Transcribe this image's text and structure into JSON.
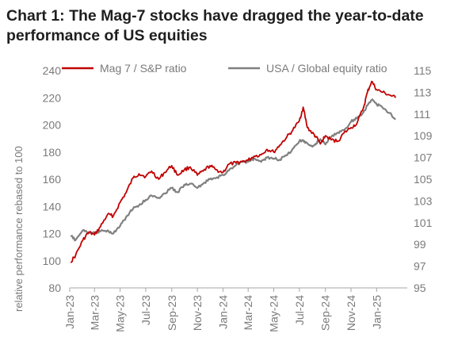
{
  "title": "Chart 1: The Mag-7 stocks have dragged the year-to-date performance of US equities",
  "chart_data": {
    "type": "line",
    "title": "Chart 1: The Mag-7 stocks have dragged the year-to-date performance of US equities",
    "ylabel": "relative performance rebased to 100",
    "ylim": [
      80,
      240
    ],
    "y_ticks": [
      80,
      100,
      120,
      140,
      160,
      180,
      200,
      220,
      240
    ],
    "y2lim": [
      95,
      115
    ],
    "y2_ticks": [
      95,
      97,
      99,
      101,
      103,
      105,
      107,
      109,
      111,
      113,
      115
    ],
    "x_ticks": [
      "Jan-23",
      "Mar-23",
      "May-23",
      "Jul-23",
      "Sep-23",
      "Nov-23",
      "Jan-24",
      "Mar-24",
      "May-24",
      "Jul-24",
      "Sep-24",
      "Nov-24",
      "Jan-25"
    ],
    "xlim": [
      "2023-01",
      "2025-03"
    ],
    "legend_position": "top",
    "grid": false,
    "series": [
      {
        "name": "Mag 7 / S&P ratio",
        "axis": "left",
        "color": "#c00000",
        "x": [
          "2023-01-03",
          "2023-01-15",
          "2023-02-01",
          "2023-02-15",
          "2023-03-01",
          "2023-03-15",
          "2023-04-01",
          "2023-04-15",
          "2023-05-01",
          "2023-05-15",
          "2023-06-01",
          "2023-06-15",
          "2023-07-01",
          "2023-07-15",
          "2023-08-01",
          "2023-08-15",
          "2023-09-01",
          "2023-09-15",
          "2023-10-01",
          "2023-10-15",
          "2023-11-01",
          "2023-11-15",
          "2023-12-01",
          "2023-12-15",
          "2024-01-01",
          "2024-01-15",
          "2024-02-01",
          "2024-02-15",
          "2024-03-01",
          "2024-03-15",
          "2024-04-01",
          "2024-04-15",
          "2024-05-01",
          "2024-05-15",
          "2024-06-01",
          "2024-06-15",
          "2024-07-01",
          "2024-07-10",
          "2024-07-20",
          "2024-08-01",
          "2024-08-10",
          "2024-08-20",
          "2024-09-01",
          "2024-09-15",
          "2024-10-01",
          "2024-10-15",
          "2024-11-01",
          "2024-11-15",
          "2024-12-01",
          "2024-12-10",
          "2024-12-20",
          "2025-01-01",
          "2025-01-15",
          "2025-02-01",
          "2025-02-15"
        ],
        "values": [
          99,
          104,
          115,
          121,
          119,
          125,
          134,
          133,
          143,
          150,
          161,
          164,
          162,
          166,
          160,
          165,
          170,
          163,
          167,
          169,
          163,
          166,
          170,
          167,
          165,
          171,
          172,
          173,
          174,
          177,
          178,
          182,
          180,
          185,
          191,
          196,
          203,
          213,
          198,
          194,
          191,
          186,
          192,
          189,
          188,
          194,
          198,
          201,
          213,
          224,
          232,
          226,
          224,
          222,
          220
        ]
      },
      {
        "name": "USA / Global equity ratio",
        "axis": "right",
        "color": "#808080",
        "x": [
          "2023-01-03",
          "2023-01-15",
          "2023-02-01",
          "2023-02-15",
          "2023-03-01",
          "2023-03-15",
          "2023-04-01",
          "2023-04-15",
          "2023-05-01",
          "2023-05-15",
          "2023-06-01",
          "2023-06-15",
          "2023-07-01",
          "2023-07-15",
          "2023-08-01",
          "2023-08-15",
          "2023-09-01",
          "2023-09-15",
          "2023-10-01",
          "2023-10-15",
          "2023-11-01",
          "2023-11-15",
          "2023-12-01",
          "2023-12-15",
          "2024-01-01",
          "2024-01-15",
          "2024-02-01",
          "2024-02-15",
          "2024-03-01",
          "2024-03-15",
          "2024-04-01",
          "2024-04-15",
          "2024-05-01",
          "2024-05-15",
          "2024-06-01",
          "2024-06-15",
          "2024-07-01",
          "2024-07-10",
          "2024-07-20",
          "2024-08-01",
          "2024-08-10",
          "2024-08-20",
          "2024-09-01",
          "2024-09-15",
          "2024-10-01",
          "2024-10-15",
          "2024-11-01",
          "2024-11-15",
          "2024-12-01",
          "2024-12-10",
          "2024-12-20",
          "2025-01-01",
          "2025-01-15",
          "2025-02-01",
          "2025-02-15"
        ],
        "values": [
          99.8,
          99.4,
          100.3,
          100.0,
          100.1,
          100.2,
          100.3,
          100.0,
          100.7,
          101.5,
          102.3,
          102.6,
          103.1,
          103.5,
          103.3,
          103.7,
          104.2,
          103.8,
          104.5,
          104.6,
          104.2,
          104.6,
          105.0,
          105.1,
          105.4,
          105.8,
          106.3,
          106.6,
          106.6,
          106.9,
          106.6,
          107.0,
          106.9,
          106.8,
          107.2,
          107.8,
          108.5,
          108.6,
          108.3,
          108.0,
          108.3,
          108.7,
          108.2,
          108.9,
          109.3,
          109.5,
          110.3,
          110.6,
          111.2,
          111.8,
          112.3,
          111.9,
          111.6,
          111.1,
          110.5
        ]
      }
    ]
  }
}
